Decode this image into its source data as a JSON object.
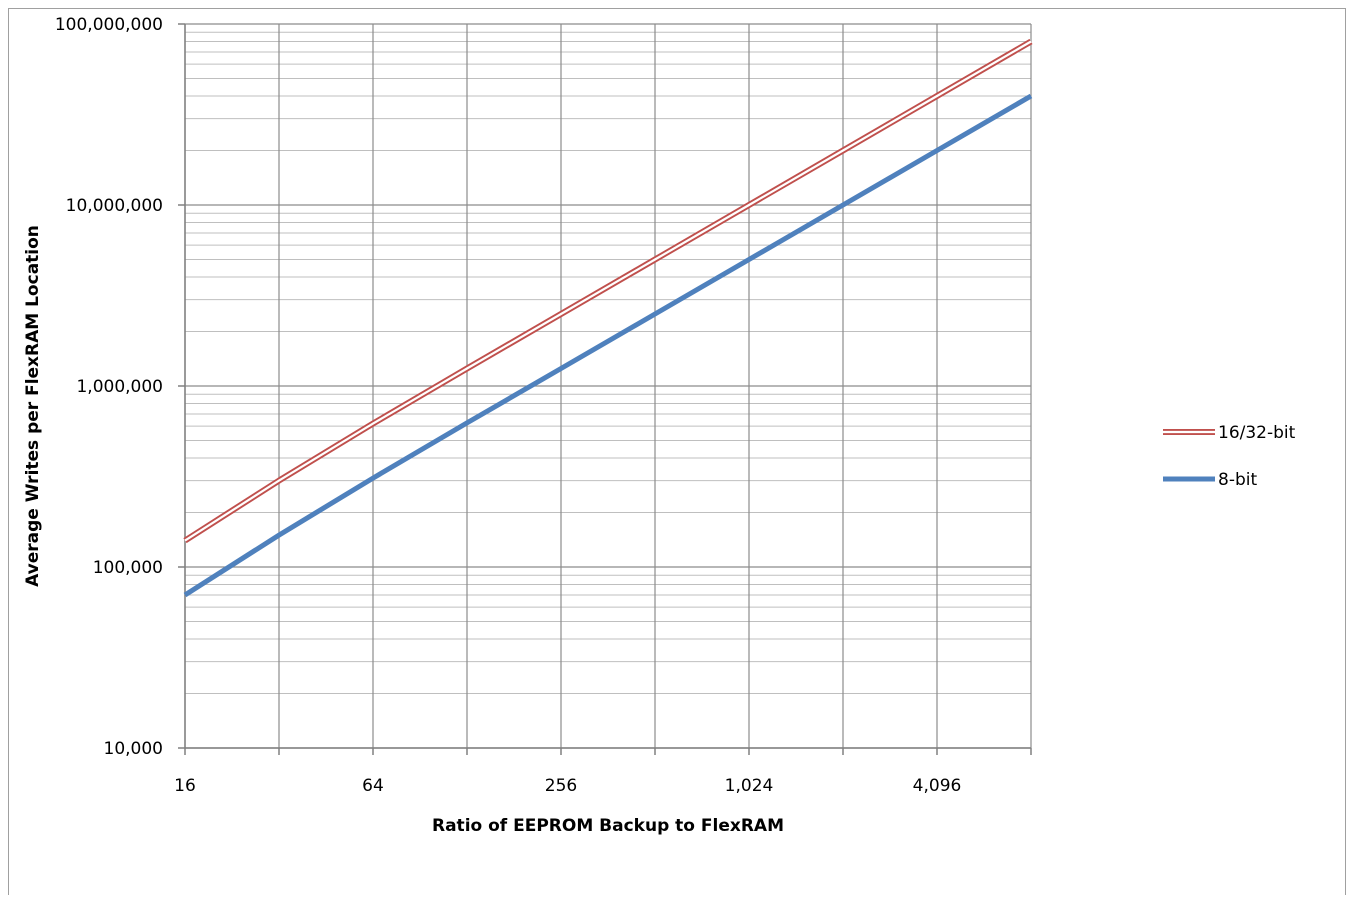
{
  "chart_data": {
    "type": "line",
    "x_scale": "log2",
    "y_scale": "log10",
    "xlabel": "Ratio of EEPROM Backup to FlexRAM",
    "ylabel": "Average Writes per FlexRAM Location",
    "xlim": [
      16,
      8192
    ],
    "ylim": [
      10000,
      100000000
    ],
    "x_ticks": [
      16,
      64,
      256,
      1024,
      4096
    ],
    "x_tick_labels": [
      "16",
      "64",
      "256",
      "1,024",
      "4,096"
    ],
    "y_ticks": [
      10000,
      100000,
      1000000,
      10000000,
      100000000
    ],
    "y_tick_labels": [
      "10,000",
      "100,000",
      "1,000,000",
      "10,000,000",
      "100,000,000"
    ],
    "grid": true,
    "legend_position": "right",
    "x": [
      16,
      32,
      64,
      128,
      256,
      512,
      1024,
      2048,
      4096,
      8192
    ],
    "series": [
      {
        "name": "16/32-bit",
        "color": "#c0504d",
        "style": "double",
        "values": [
          140000,
          300000,
          620000,
          1250000,
          2500000,
          5000000,
          10000000,
          20000000,
          40000000,
          80000000
        ]
      },
      {
        "name": "8-bit",
        "color": "#4f81bd",
        "style": "solid",
        "values": [
          70000,
          150000,
          310000,
          625000,
          1250000,
          2500000,
          5000000,
          10000000,
          20000000,
          40000000
        ]
      }
    ]
  }
}
